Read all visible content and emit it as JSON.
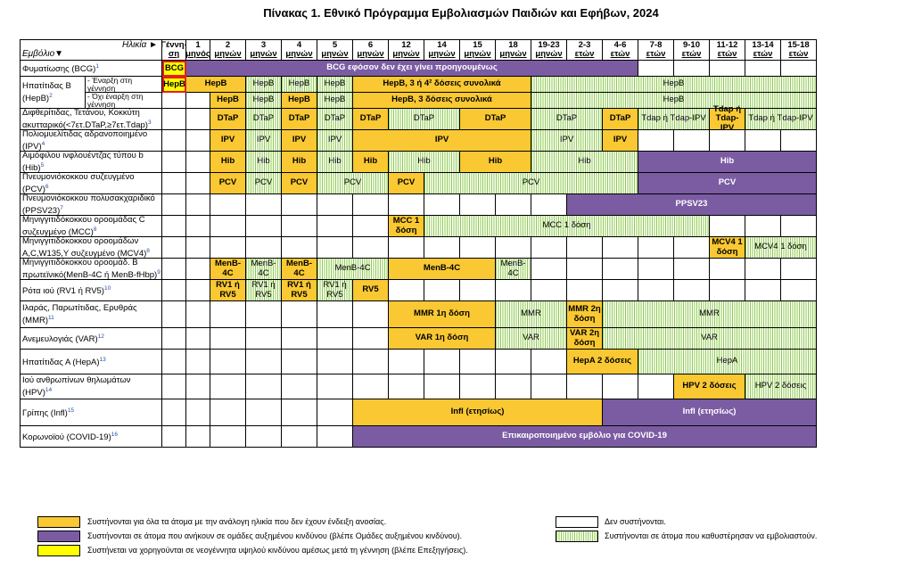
{
  "title": "Πίνακας 1. Εθνικό Πρόγραμμα Εμβολιασμών Παιδιών και Εφήβων, 2024",
  "corner": {
    "age": "Ηλικία ►",
    "vaccine": "Εμβόλιο▼"
  },
  "ages": [
    [
      "Γέννη-",
      "ση"
    ],
    [
      "1",
      "μηνός"
    ],
    [
      "2",
      "μηνών"
    ],
    [
      "3",
      "μηνών"
    ],
    [
      "4",
      "μηνών"
    ],
    [
      "5",
      "μηνών"
    ],
    [
      "6",
      "μηνών"
    ],
    [
      "12",
      "μηνών"
    ],
    [
      "14",
      "μηνών"
    ],
    [
      "15",
      "μηνών"
    ],
    [
      "18",
      "μηνών"
    ],
    [
      "19-23",
      "μηνών"
    ],
    [
      "2-3",
      "ετών"
    ],
    [
      "4-6",
      "ετών"
    ],
    [
      "7-8",
      "ετών"
    ],
    [
      "9-10",
      "ετών"
    ],
    [
      "11-12",
      "ετών"
    ],
    [
      "13-14",
      "ετών"
    ],
    [
      "15-18",
      "ετών"
    ]
  ],
  "vaccines": [
    {
      "name": "Φυματίωσης (BCG)",
      "sup": "1"
    },
    {
      "name": "Ηπατίτιδας Β (HepB)",
      "sup": "2",
      "subs": [
        "- Έναρξη στη γέννηση",
        "- Όχι έναρξη στη γέννηση"
      ]
    },
    {
      "name": "Διφθερίτιδας, Τετάνου, Κοκκύτη ακυτταρικό(<7ετ.DTaP,≥7ετ.Tdap)",
      "sup": "3"
    },
    {
      "name": "Πολιομυελίτιδας αδρανοποιημένο (IPV)",
      "sup": "4"
    },
    {
      "name": "Αιμόφιλου ινφλουέντζας τύπου b (Hib)",
      "sup": "5"
    },
    {
      "name": "Πνευμονιόκοκκου συζευγμένο (PCV)",
      "sup": "6"
    },
    {
      "name": "Πνευμονιόκοκκου πολυσακχαριδικό (PPSV23)",
      "sup": "7"
    },
    {
      "name": "Μηνιγγιτιδόκοκκου οροομάδας C συζευγμένο (MCC)",
      "sup": "8"
    },
    {
      "name": "Μηνιγγιτιδόκοκκου οροομάδων A,C,W135,Y συζευγμένο (MCV4)",
      "sup": "8"
    },
    {
      "name": "Μηνιγγιτιδόκοκκου οροομάδ. Β πρωτεϊνικό(MenB-4C ή MenB-fHbp)",
      "sup": "9"
    },
    {
      "name": "Ρότα ιού (RV1 ή RV5)",
      "sup": "10"
    },
    {
      "name": "Ιλαράς, Παρωτίτιδας, Ερυθράς (MMR)",
      "sup": "11"
    },
    {
      "name": "Ανεμευλογιάς (VAR)",
      "sup": "12"
    },
    {
      "name": "Ηπατίτιδας Α (HepA)",
      "sup": "13"
    },
    {
      "name": "Ιού ανθρωπίνων θηλωμάτων (HPV)",
      "sup": "14"
    },
    {
      "name": "Γρίπης (Infl)",
      "sup": "15"
    },
    {
      "name": "Κορωνοϊού (COVID-19)",
      "sup": "16"
    }
  ],
  "bars": [
    {
      "row": 0,
      "from": 0,
      "to": 0,
      "kind": "red",
      "text": "BCG"
    },
    {
      "row": 0,
      "from": 1,
      "to": 13,
      "kind": "purple",
      "text": "BCG εφόσον δεν έχει γίνει προηγουμένως"
    },
    {
      "row": 1,
      "from": 0,
      "to": 0,
      "kind": "red",
      "text": "HepB"
    },
    {
      "row": 1,
      "from": 1,
      "to": 2,
      "kind": "yellow",
      "text": "HepB"
    },
    {
      "row": 1,
      "from": 3,
      "to": 3,
      "kind": "green",
      "text": "HepB"
    },
    {
      "row": 1,
      "from": 4,
      "to": 4,
      "kind": "green",
      "text": "HepB"
    },
    {
      "row": 1,
      "from": 5,
      "to": 5,
      "kind": "green",
      "text": "HepB"
    },
    {
      "row": 1,
      "from": 6,
      "to": 10,
      "kind": "yellow",
      "text": "HepB, 3 ή 4² δόσεις συνολικά"
    },
    {
      "row": 1,
      "from": 11,
      "to": 18,
      "kind": "green",
      "text": "HepB"
    },
    {
      "row": 2,
      "from": 2,
      "to": 2,
      "kind": "yellow",
      "text": "HepB"
    },
    {
      "row": 2,
      "from": 3,
      "to": 3,
      "kind": "green",
      "text": "HepB"
    },
    {
      "row": 2,
      "from": 4,
      "to": 4,
      "kind": "yellow",
      "text": "HepB"
    },
    {
      "row": 2,
      "from": 5,
      "to": 5,
      "kind": "green",
      "text": "HepB"
    },
    {
      "row": 2,
      "from": 6,
      "to": 10,
      "kind": "yellow",
      "text": "HepB, 3 δόσεις συνολικά"
    },
    {
      "row": 2,
      "from": 11,
      "to": 18,
      "kind": "green",
      "text": "HepB"
    },
    {
      "row": 3,
      "from": 2,
      "to": 2,
      "kind": "yellow",
      "text": "DTaP"
    },
    {
      "row": 3,
      "from": 3,
      "to": 3,
      "kind": "green",
      "text": "DTaP"
    },
    {
      "row": 3,
      "from": 4,
      "to": 4,
      "kind": "yellow",
      "text": "DTaP"
    },
    {
      "row": 3,
      "from": 5,
      "to": 5,
      "kind": "green",
      "text": "DTaP"
    },
    {
      "row": 3,
      "from": 6,
      "to": 6,
      "kind": "yellow",
      "text": "DTaP"
    },
    {
      "row": 3,
      "from": 7,
      "to": 8,
      "kind": "green",
      "text": "DTaP"
    },
    {
      "row": 3,
      "from": 9,
      "to": 10,
      "kind": "yellow",
      "text": "DTaP"
    },
    {
      "row": 3,
      "from": 11,
      "to": 12,
      "kind": "green",
      "text": "DTaP"
    },
    {
      "row": 3,
      "from": 13,
      "to": 13,
      "kind": "yellow",
      "text": "DTaP"
    },
    {
      "row": 3,
      "from": 14,
      "to": 15,
      "kind": "green",
      "text": "Tdap ή Tdap-IPV"
    },
    {
      "row": 3,
      "from": 16,
      "to": 16,
      "kind": "yellow",
      "text": "Tdap ή Tdap-IPV"
    },
    {
      "row": 3,
      "from": 17,
      "to": 18,
      "kind": "green",
      "text": "Tdap ή Tdap-IPV"
    },
    {
      "row": 4,
      "from": 2,
      "to": 2,
      "kind": "yellow",
      "text": "IPV"
    },
    {
      "row": 4,
      "from": 3,
      "to": 3,
      "kind": "green",
      "text": "IPV"
    },
    {
      "row": 4,
      "from": 4,
      "to": 4,
      "kind": "yellow",
      "text": "IPV"
    },
    {
      "row": 4,
      "from": 5,
      "to": 5,
      "kind": "green",
      "text": "IPV"
    },
    {
      "row": 4,
      "from": 6,
      "to": 10,
      "kind": "yellow",
      "text": "IPV"
    },
    {
      "row": 4,
      "from": 11,
      "to": 12,
      "kind": "green",
      "text": "IPV"
    },
    {
      "row": 4,
      "from": 13,
      "to": 13,
      "kind": "yellow",
      "text": "IPV"
    },
    {
      "row": 5,
      "from": 2,
      "to": 2,
      "kind": "yellow",
      "text": "Hib"
    },
    {
      "row": 5,
      "from": 3,
      "to": 3,
      "kind": "green",
      "text": "Hib"
    },
    {
      "row": 5,
      "from": 4,
      "to": 4,
      "kind": "yellow",
      "text": "Hib"
    },
    {
      "row": 5,
      "from": 5,
      "to": 5,
      "kind": "green",
      "text": "Hib"
    },
    {
      "row": 5,
      "from": 6,
      "to": 6,
      "kind": "yellow",
      "text": "Hib"
    },
    {
      "row": 5,
      "from": 7,
      "to": 8,
      "kind": "green",
      "text": "Hib"
    },
    {
      "row": 5,
      "from": 9,
      "to": 10,
      "kind": "yellow",
      "text": "Hib"
    },
    {
      "row": 5,
      "from": 11,
      "to": 13,
      "kind": "green",
      "text": "Hib"
    },
    {
      "row": 5,
      "from": 14,
      "to": 18,
      "kind": "purple",
      "text": "Hib"
    },
    {
      "row": 6,
      "from": 2,
      "to": 2,
      "kind": "yellow",
      "text": "PCV"
    },
    {
      "row": 6,
      "from": 3,
      "to": 3,
      "kind": "green",
      "text": "PCV"
    },
    {
      "row": 6,
      "from": 4,
      "to": 4,
      "kind": "yellow",
      "text": "PCV"
    },
    {
      "row": 6,
      "from": 5,
      "to": 6,
      "kind": "green",
      "text": "PCV"
    },
    {
      "row": 6,
      "from": 7,
      "to": 7,
      "kind": "yellow",
      "text": "PCV"
    },
    {
      "row": 6,
      "from": 8,
      "to": 13,
      "kind": "green",
      "text": "PCV"
    },
    {
      "row": 6,
      "from": 14,
      "to": 18,
      "kind": "purple",
      "text": "PCV"
    },
    {
      "row": 7,
      "from": 12,
      "to": 18,
      "kind": "purple",
      "text": "PPSV23"
    },
    {
      "row": 8,
      "from": 7,
      "to": 7,
      "kind": "yellow",
      "text": "MCC 1 δόση"
    },
    {
      "row": 8,
      "from": 8,
      "to": 15,
      "kind": "green",
      "text": "MCC 1 δόση"
    },
    {
      "row": 9,
      "from": 16,
      "to": 16,
      "kind": "yellow",
      "text": "MCV4 1 δόση"
    },
    {
      "row": 9,
      "from": 17,
      "to": 18,
      "kind": "green",
      "text": "MCV4 1 δόση"
    },
    {
      "row": 10,
      "from": 2,
      "to": 2,
      "kind": "yellow",
      "text": "MenB-4C"
    },
    {
      "row": 10,
      "from": 3,
      "to": 3,
      "kind": "green",
      "text": "MenB-4C"
    },
    {
      "row": 10,
      "from": 4,
      "to": 4,
      "kind": "yellow",
      "text": "MenB-4C"
    },
    {
      "row": 10,
      "from": 5,
      "to": 6,
      "kind": "green",
      "text": "MenB-4C"
    },
    {
      "row": 10,
      "from": 7,
      "to": 9,
      "kind": "yellow",
      "text": "MenB-4C"
    },
    {
      "row": 10,
      "from": 10,
      "to": 10,
      "kind": "green",
      "text": "MenB-4C"
    },
    {
      "row": 11,
      "from": 2,
      "to": 2,
      "kind": "yellow",
      "text": "RV1 ή RV5"
    },
    {
      "row": 11,
      "from": 3,
      "to": 3,
      "kind": "green",
      "text": "RV1 ή RV5"
    },
    {
      "row": 11,
      "from": 4,
      "to": 4,
      "kind": "yellow",
      "text": "RV1 ή RV5"
    },
    {
      "row": 11,
      "from": 5,
      "to": 5,
      "kind": "green",
      "text": "RV1 ή RV5"
    },
    {
      "row": 11,
      "from": 6,
      "to": 6,
      "kind": "yellow",
      "text": "RV5"
    },
    {
      "row": 12,
      "from": 7,
      "to": 9,
      "kind": "yellow",
      "text": "MMR 1η δόση"
    },
    {
      "row": 12,
      "from": 10,
      "to": 11,
      "kind": "green",
      "text": "MMR"
    },
    {
      "row": 12,
      "from": 12,
      "to": 12,
      "kind": "yellow",
      "text": "MMR 2η δόση"
    },
    {
      "row": 12,
      "from": 13,
      "to": 18,
      "kind": "green",
      "text": "MMR"
    },
    {
      "row": 13,
      "from": 7,
      "to": 9,
      "kind": "yellow",
      "text": "VAR 1η δόση"
    },
    {
      "row": 13,
      "from": 10,
      "to": 11,
      "kind": "green",
      "text": "VAR"
    },
    {
      "row": 13,
      "from": 12,
      "to": 12,
      "kind": "yellow",
      "text": "VAR 2η δόση"
    },
    {
      "row": 13,
      "from": 13,
      "to": 18,
      "kind": "green",
      "text": "VAR"
    },
    {
      "row": 14,
      "from": 12,
      "to": 13,
      "kind": "yellow",
      "text": "HepA 2 δόσεις"
    },
    {
      "row": 14,
      "from": 14,
      "to": 18,
      "kind": "green",
      "text": "HepA"
    },
    {
      "row": 15,
      "from": 15,
      "to": 16,
      "kind": "yellow",
      "text": "HPV 2 δόσεις"
    },
    {
      "row": 15,
      "from": 17,
      "to": 18,
      "kind": "green",
      "text": "HPV 2 δόσεις"
    },
    {
      "row": 16,
      "from": 6,
      "to": 12,
      "kind": "yellow",
      "text": "Infl (ετησίως)"
    },
    {
      "row": 16,
      "from": 13,
      "to": 18,
      "kind": "purple",
      "text": "Infl (ετησίως)"
    },
    {
      "row": 17,
      "from": 6,
      "to": 18,
      "kind": "purple",
      "text": "Επικαιροποιημένο εμβόλιο για COVID-19"
    }
  ],
  "legend": {
    "yellow": "Συστήνονται για όλα τα άτομα με την ανάλογη ηλικία που δεν έχουν ένδειξη ανοσίας.",
    "purple": "Συστήνονται σε άτομα που ανήκουν σε ομάδες αυξημένου κινδύνου (βλέπε Ομάδες αυξημένου κινδύνου).",
    "red": "Συστήνεται να χορηγούνται σε νεογέννητα υψηλού κινδύνου αμέσως μετά τη γέννηση (βλέπε Επεξηγήσεις).",
    "white": "Δεν συστήνονται.",
    "green": "Συστήνονται σε άτομα που καθυστέρησαν να εμβολιαστούν."
  },
  "colors": {
    "yellow": "#f9c832",
    "purple": "#7b5ca3",
    "green": "#8ec94c",
    "red": "#e02020"
  }
}
